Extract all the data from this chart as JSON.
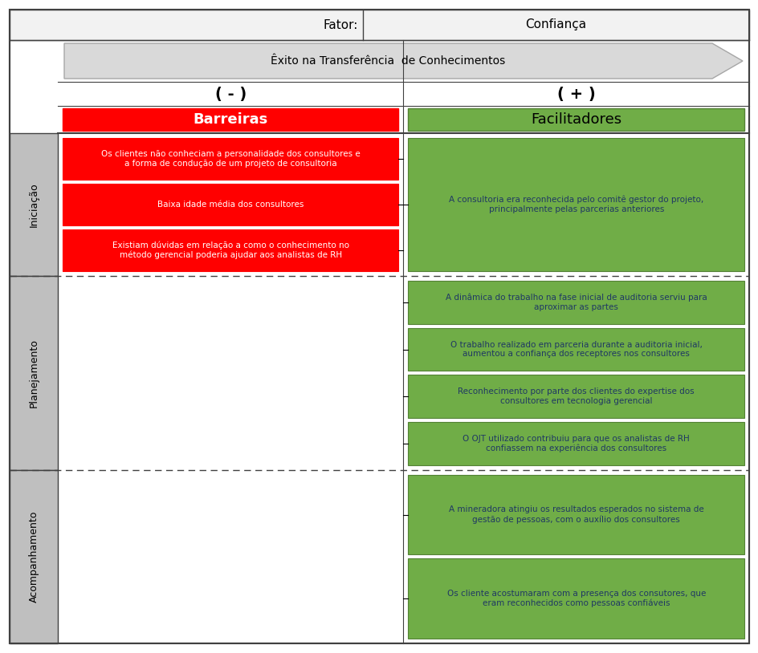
{
  "title_label": "Fator:",
  "title_value": "Confiança",
  "arrow_text": "Êxito na Transferência  de Conhecimentos",
  "minus_label": "( - )",
  "plus_label": "( + )",
  "barriers_label": "Barreiras",
  "facilitators_label": "Facilitadores",
  "barrier_color": "#FF0000",
  "barrier_border": "#CC0000",
  "facilitator_color": "#70AD47",
  "facilitator_border": "#538135",
  "barrier_text_color": "#FFFFFF",
  "facilitator_text_color": "#1F3864",
  "header_bg": "#F2F2F2",
  "arrow_bg": "#D9D9D9",
  "arrow_border": "#A6A6A6",
  "phase_bg": "#BFBFBF",
  "outer_border": "#404040",
  "dashed_color": "#404040",
  "phases": [
    "Iniciação",
    "Planejamento",
    "Acompanhamento"
  ],
  "barriers": {
    "Iniciação": [
      "Os clientes não conheciam a personalidade dos consultores e\na forma de condução de um projeto de consultoria",
      "Baixa idade média dos consultores",
      "Existiam dúvidas em relação a como o conhecimento no\nmétodo gerencial poderia ajudar aos analistas de RH"
    ],
    "Planejamento": [],
    "Acompanhamento": []
  },
  "facilitators": {
    "Iniciação": [
      "A consultoria era reconhecida pelo comitê gestor do projeto,\nprincipalmente pelas parcerias anteriores"
    ],
    "Planejamento": [
      "A dinâmica do trabalho na fase inicial de auditoria serviu para\naproximar as partes",
      "O trabalho realizado em parceria durante a auditoria inicial,\naumentou a confiança dos receptores nos consultores",
      "Reconhecimento por parte dos clientes do expertise dos\nconsultores em tecnologia gerencial",
      "O OJT utilizado contribuiu para que os analistas de RH\nconfiassem na experiência dos consultores"
    ],
    "Acompanhamento": [
      "A mineradora atingiu os resultados esperados no sistema de\ngestão de pessoas, com o auxílio dos consultores",
      "Os cliente acostumaram com a presença dos consutores, que\neram reconhecidos como pessoas confiáveis"
    ]
  },
  "figw": 9.45,
  "figh": 8.14,
  "dpi": 100
}
